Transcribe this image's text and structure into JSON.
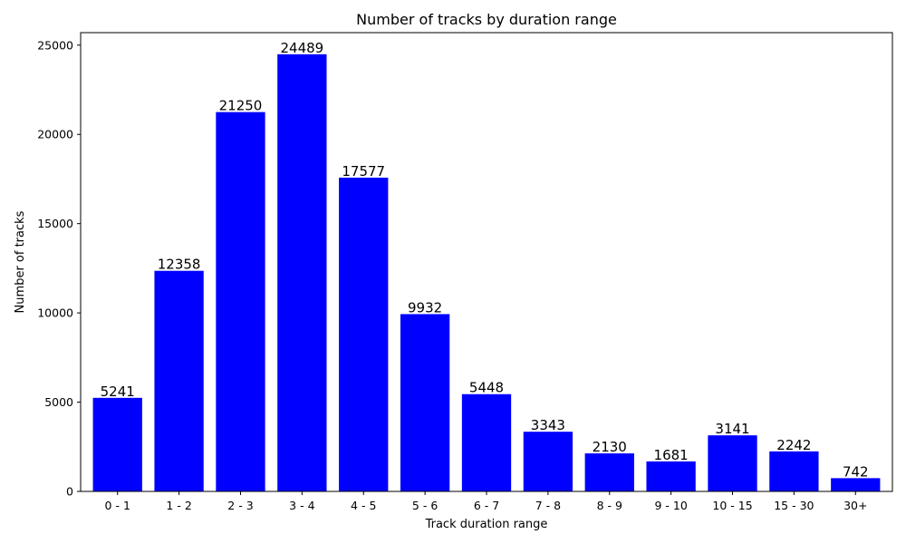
{
  "chart_data": {
    "type": "bar",
    "title": "Number of tracks by duration range",
    "xlabel": "Track duration range",
    "ylabel": "Number of tracks",
    "categories": [
      "0 - 1",
      "1 - 2",
      "2 - 3",
      "3 - 4",
      "4 - 5",
      "5 - 6",
      "6 - 7",
      "7 - 8",
      "8 - 9",
      "9 - 10",
      "10 - 15",
      "15 - 30",
      "30+"
    ],
    "values": [
      5241,
      12358,
      21250,
      24489,
      17577,
      9932,
      5448,
      3343,
      2130,
      1681,
      3141,
      2242,
      742
    ],
    "ylim": [
      0,
      25700
    ],
    "yticks": [
      0,
      5000,
      10000,
      15000,
      20000,
      25000
    ],
    "bar_color": "#0000ff",
    "grid": false,
    "legend": false,
    "data_labels": true
  }
}
